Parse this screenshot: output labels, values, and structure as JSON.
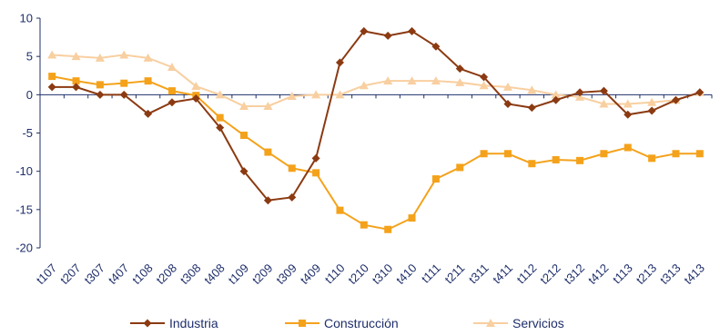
{
  "chart_data": {
    "type": "line",
    "categories": [
      "t107",
      "t207",
      "t307",
      "t407",
      "t108",
      "t208",
      "t308",
      "t408",
      "t109",
      "t209",
      "t309",
      "t409",
      "t110",
      "t210",
      "t310",
      "t410",
      "t111",
      "t211",
      "t311",
      "t411",
      "t112",
      "t212",
      "t312",
      "t412",
      "t113",
      "t213",
      "t313",
      "t413"
    ],
    "ylim": [
      -20,
      10
    ],
    "yticks": [
      "10",
      "5",
      "0",
      "-5",
      "-10",
      "-15",
      "-20"
    ],
    "grid": false,
    "legend_position": "bottom",
    "series": [
      {
        "name": "Industria",
        "color": "#8b3a12",
        "marker": "diamond",
        "values": [
          1.0,
          1.0,
          0.0,
          0.0,
          -2.5,
          -1.0,
          -0.5,
          -4.3,
          -10.0,
          -13.8,
          -13.4,
          -8.3,
          4.2,
          8.3,
          7.7,
          8.3,
          6.3,
          3.4,
          2.3,
          -1.2,
          -1.7,
          -0.7,
          0.3,
          0.5,
          -2.6,
          -2.1,
          -0.7,
          0.3
        ]
      },
      {
        "name": "Construcción",
        "color": "#f4a21b",
        "marker": "square",
        "values": [
          2.4,
          1.8,
          1.3,
          1.5,
          1.8,
          0.5,
          -0.1,
          -3.0,
          -5.3,
          -7.5,
          -9.6,
          -10.2,
          -15.1,
          -17.0,
          -17.6,
          -16.1,
          -11.0,
          -9.5,
          -7.7,
          -7.7,
          -9.0,
          -8.5,
          -8.6,
          -7.7,
          -6.9,
          -8.3,
          -7.7,
          -7.7
        ]
      },
      {
        "name": "Servicios",
        "color": "#f8cfa0",
        "marker": "triangle",
        "values": [
          5.2,
          5.0,
          4.8,
          5.2,
          4.8,
          3.6,
          1.1,
          0.0,
          -1.5,
          -1.5,
          -0.2,
          0.0,
          0.0,
          1.2,
          1.8,
          1.8,
          1.8,
          1.6,
          1.2,
          1.0,
          0.6,
          0.0,
          -0.3,
          -1.2,
          -1.2,
          -1.0,
          -0.7,
          0.3
        ]
      }
    ]
  }
}
